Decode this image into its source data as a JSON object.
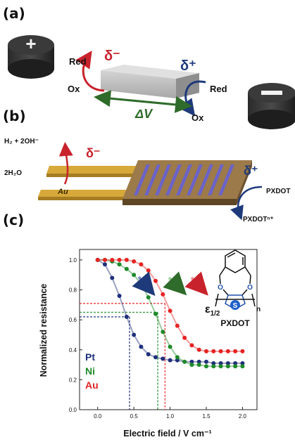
{
  "panel_a": {
    "label": "(a)",
    "delta_minus": "δ⁻",
    "delta_plus": "δ⁺",
    "left_red": "Red",
    "left_ox": "Ox",
    "right_red": "Red",
    "right_ox": "Ox",
    "delta_v": "ΔV",
    "plus_symbol": "+",
    "minus_symbol": "−"
  },
  "panel_b": {
    "label": "(b)",
    "h2_line": "H₂ + 2OH⁻",
    "water": "2H₂O",
    "delta_minus": "δ⁻",
    "delta_plus": "δ⁺",
    "au": "Au",
    "pxdot": "PXDOT",
    "pxdot_n": "PXDOTⁿ⁺"
  },
  "panel_c": {
    "label": "(c)",
    "epsilon_main": "ε",
    "epsilon_sub": "1/2",
    "molecule_label": "PXDOT",
    "sulfur": "S",
    "oxygen": "O",
    "subscript_n": "n"
  },
  "colors": {
    "Pt": "#1f2f7a",
    "Ni": "#1e8a2a",
    "Au": "#e52323",
    "red_arrow": "#c8232c",
    "blue_arrow": "#1e3a7a",
    "green_arrow": "#2f6b2a",
    "gold": "#d7a93a",
    "brown": "#8b6a3e",
    "purple": "#6b63c9"
  },
  "chart_data": {
    "type": "scatter",
    "xlabel": "Electric field / V cm⁻¹",
    "ylabel": "Normalized resistance",
    "xlim": [
      -0.25,
      2.2
    ],
    "ylim": [
      0.0,
      1.07
    ],
    "xticks": [
      "0.0",
      "0.5",
      "1.0",
      "1.5",
      "2.0"
    ],
    "yticks": [
      "0.0",
      "0.2",
      "0.4",
      "0.6",
      "0.8",
      "1.0"
    ],
    "legend_position": "bottom-left",
    "guide_values": {
      "Pt": {
        "x": 0.44,
        "y": 0.62
      },
      "Ni": {
        "x": 0.83,
        "y": 0.65
      },
      "Au": {
        "x": 0.93,
        "y": 0.71
      }
    },
    "series": [
      {
        "name": "Pt",
        "x": [
          0.0,
          0.1,
          0.2,
          0.3,
          0.4,
          0.5,
          0.6,
          0.7,
          0.8,
          0.9,
          1.0,
          1.1,
          1.2,
          1.3,
          1.4,
          1.5,
          1.6,
          1.7,
          1.8,
          1.9,
          2.0
        ],
        "y": [
          1.0,
          0.97,
          0.88,
          0.76,
          0.62,
          0.5,
          0.42,
          0.37,
          0.35,
          0.34,
          0.33,
          0.33,
          0.32,
          0.32,
          0.32,
          0.32,
          0.31,
          0.31,
          0.31,
          0.31,
          0.31
        ]
      },
      {
        "name": "Ni",
        "x": [
          0.0,
          0.1,
          0.2,
          0.3,
          0.4,
          0.5,
          0.6,
          0.7,
          0.8,
          0.9,
          1.0,
          1.1,
          1.2,
          1.3,
          1.4,
          1.5,
          1.6,
          1.7,
          1.8,
          1.9,
          2.0
        ],
        "y": [
          1.0,
          1.0,
          0.99,
          0.97,
          0.94,
          0.9,
          0.84,
          0.75,
          0.64,
          0.52,
          0.42,
          0.35,
          0.32,
          0.3,
          0.3,
          0.29,
          0.29,
          0.29,
          0.29,
          0.29,
          0.29
        ]
      },
      {
        "name": "Au",
        "x": [
          0.0,
          0.1,
          0.2,
          0.3,
          0.4,
          0.5,
          0.6,
          0.7,
          0.8,
          0.9,
          1.0,
          1.1,
          1.2,
          1.3,
          1.4,
          1.5,
          1.6,
          1.7,
          1.8,
          1.9,
          2.0
        ],
        "y": [
          1.0,
          1.0,
          1.0,
          1.0,
          1.0,
          0.99,
          0.97,
          0.93,
          0.86,
          0.77,
          0.66,
          0.56,
          0.48,
          0.43,
          0.4,
          0.39,
          0.39,
          0.39,
          0.39,
          0.39,
          0.39
        ]
      }
    ]
  }
}
